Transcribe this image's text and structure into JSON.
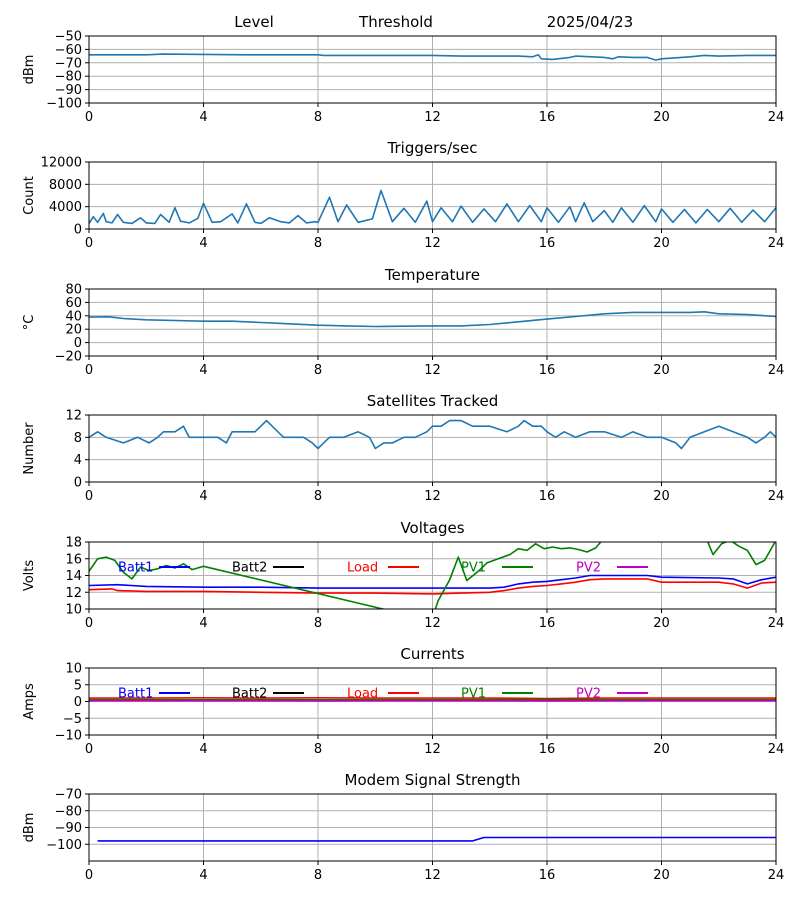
{
  "header": {
    "level": "Level",
    "threshold": "Threshold",
    "date": "2025/04/23"
  },
  "colors": {
    "default": "#1f77b4",
    "blue": "#0000ff",
    "black": "#000000",
    "red": "#ff0000",
    "green": "#008000",
    "magenta": "#bf00bf",
    "grid": "#b0b0b0"
  },
  "chart_data": [
    {
      "type": "line",
      "title": "",
      "ylabel": "dBm",
      "xlim": [
        0,
        24
      ],
      "ylim": [
        -100,
        -50
      ],
      "xticks": [
        0,
        4,
        8,
        12,
        16,
        20,
        24
      ],
      "yticks": [
        -100,
        -90,
        -80,
        -70,
        -60,
        -50
      ],
      "grid": true,
      "series": [
        {
          "color": "#1f77b4",
          "x": [
            0,
            2,
            2.6,
            5.5,
            8,
            8.2,
            10,
            12,
            13,
            14,
            15,
            15.5,
            15.7,
            15.8,
            16.2,
            16.8,
            17,
            18,
            18.3,
            18.5,
            19,
            19.5,
            19.8,
            20,
            21,
            21.5,
            22,
            23,
            24
          ],
          "values": [
            -64,
            -64,
            -63.5,
            -64,
            -64,
            -64.5,
            -64.5,
            -64.5,
            -65,
            -65,
            -65,
            -65.5,
            -64,
            -67,
            -67.5,
            -66,
            -65,
            -66,
            -67,
            -65.5,
            -66,
            -66,
            -68,
            -67,
            -65.5,
            -64.5,
            -65,
            -64.5,
            -64.5
          ]
        }
      ]
    },
    {
      "type": "line",
      "title": "Triggers/sec",
      "ylabel": "Count",
      "xlim": [
        0,
        24
      ],
      "ylim": [
        0,
        12000
      ],
      "xticks": [
        0,
        4,
        8,
        12,
        16,
        20,
        24
      ],
      "yticks": [
        0,
        4000,
        8000,
        12000
      ],
      "grid": true,
      "series": [
        {
          "color": "#1f77b4",
          "x": [
            0,
            0.15,
            0.3,
            0.5,
            0.6,
            0.8,
            1.0,
            1.2,
            1.5,
            1.8,
            2.0,
            2.3,
            2.5,
            2.8,
            3.0,
            3.2,
            3.5,
            3.8,
            4.0,
            4.3,
            4.6,
            5.0,
            5.2,
            5.5,
            5.8,
            6.0,
            6.3,
            6.7,
            7.0,
            7.3,
            7.6,
            7.9,
            8.0,
            8.4,
            8.7,
            9.0,
            9.4,
            9.9,
            10.2,
            10.6,
            11.0,
            11.4,
            11.8,
            12.0,
            12.3,
            12.7,
            13.0,
            13.4,
            13.8,
            14.2,
            14.6,
            15.0,
            15.4,
            15.8,
            16.0,
            16.4,
            16.8,
            17.0,
            17.3,
            17.6,
            18.0,
            18.3,
            18.6,
            19.0,
            19.4,
            19.8,
            20.0,
            20.4,
            20.8,
            21.2,
            21.6,
            22.0,
            22.4,
            22.8,
            23.2,
            23.6,
            24.0
          ],
          "values": [
            1000,
            2200,
            1200,
            2800,
            1300,
            1100,
            2600,
            1200,
            1000,
            2000,
            1100,
            1000,
            2600,
            1200,
            3800,
            1400,
            1100,
            1900,
            4600,
            1200,
            1300,
            2700,
            1100,
            4500,
            1200,
            1000,
            2000,
            1300,
            1100,
            2400,
            1100,
            1300,
            1200,
            5700,
            1300,
            4300,
            1200,
            1800,
            6900,
            1300,
            3700,
            1200,
            5000,
            1300,
            3800,
            1300,
            4100,
            1200,
            3600,
            1300,
            4500,
            1300,
            4200,
            1300,
            3800,
            1200,
            4000,
            1300,
            4700,
            1300,
            3300,
            1200,
            3800,
            1200,
            4200,
            1300,
            3600,
            1200,
            3500,
            1100,
            3500,
            1300,
            3700,
            1200,
            3400,
            1300,
            3800
          ]
        }
      ]
    },
    {
      "type": "line",
      "title": "Temperature",
      "ylabel": "°C",
      "xlim": [
        0,
        24
      ],
      "ylim": [
        -20,
        80
      ],
      "xticks": [
        0,
        4,
        8,
        12,
        16,
        20,
        24
      ],
      "yticks": [
        -20,
        0,
        20,
        40,
        60,
        80
      ],
      "grid": true,
      "series": [
        {
          "color": "#1f77b4",
          "x": [
            0,
            0.7,
            1.2,
            2,
            3,
            4,
            5,
            6,
            7,
            8,
            9,
            10,
            11,
            12,
            13,
            14,
            15,
            16,
            17,
            18,
            19,
            20,
            21,
            21.5,
            22,
            23,
            24
          ],
          "values": [
            38,
            38.5,
            36,
            34,
            33,
            32,
            32,
            30,
            28,
            26,
            25,
            24,
            24.5,
            25,
            25,
            27,
            31,
            35,
            39,
            43,
            45,
            45,
            45,
            46,
            43,
            42,
            39
          ]
        }
      ]
    },
    {
      "type": "line",
      "title": "Satellites Tracked",
      "ylabel": "Number",
      "xlim": [
        0,
        24
      ],
      "ylim": [
        0,
        12
      ],
      "xticks": [
        0,
        4,
        8,
        12,
        16,
        20,
        24
      ],
      "yticks": [
        0,
        4,
        8,
        12
      ],
      "grid": true,
      "series": [
        {
          "color": "#1f77b4",
          "x": [
            0,
            0.3,
            0.6,
            1.2,
            1.7,
            2.1,
            2.4,
            2.6,
            3.0,
            3.3,
            3.5,
            4.0,
            4.5,
            4.8,
            5.0,
            5.8,
            6.0,
            6.2,
            6.4,
            6.6,
            6.8,
            7.0,
            7.5,
            7.8,
            8.0,
            8.2,
            8.4,
            8.9,
            9.4,
            9.8,
            10.0,
            10.3,
            10.6,
            11.0,
            11.4,
            11.8,
            12.0,
            12.3,
            12.6,
            13.0,
            13.4,
            14.0,
            14.6,
            15.0,
            15.2,
            15.5,
            15.8,
            16.0,
            16.3,
            16.6,
            17.0,
            17.5,
            18.0,
            18.6,
            19.0,
            19.5,
            20.0,
            20.5,
            20.7,
            21.0,
            21.5,
            22.0,
            22.5,
            23.0,
            23.3,
            23.6,
            23.8,
            24.0
          ],
          "values": [
            8,
            9,
            8,
            7,
            8,
            7,
            8,
            9,
            9,
            10,
            8,
            8,
            8,
            7,
            9,
            9,
            10,
            11,
            10,
            9,
            8,
            8,
            8,
            7,
            6,
            7,
            8,
            8,
            9,
            8,
            6,
            7,
            7,
            8,
            8,
            9,
            10,
            10,
            11,
            11,
            10,
            10,
            9,
            10,
            11,
            10,
            10,
            9,
            8,
            9,
            8,
            9,
            9,
            8,
            9,
            8,
            8,
            7,
            6,
            8,
            9,
            10,
            9,
            8,
            7,
            8,
            9,
            8
          ]
        }
      ]
    },
    {
      "type": "line",
      "title": "Voltages",
      "ylabel": "Volts",
      "xlim": [
        0,
        24
      ],
      "ylim": [
        10,
        18
      ],
      "xticks": [
        0,
        4,
        8,
        12,
        16,
        20,
        24
      ],
      "yticks": [
        10,
        12,
        14,
        16,
        18
      ],
      "grid": true,
      "legend": "inside-top",
      "series": [
        {
          "name": "Batt1",
          "color": "#0000ff",
          "x": [
            0,
            1,
            2,
            4,
            6,
            8,
            10,
            12,
            13,
            14,
            14.5,
            15,
            15.5,
            16,
            16.5,
            17,
            17.5,
            18,
            19,
            19.5,
            20,
            22,
            22.5,
            23,
            23.5,
            24
          ],
          "values": [
            12.8,
            12.9,
            12.7,
            12.6,
            12.6,
            12.5,
            12.5,
            12.5,
            12.5,
            12.5,
            12.6,
            13.0,
            13.2,
            13.3,
            13.5,
            13.7,
            14.0,
            14.0,
            14.0,
            14.0,
            13.8,
            13.7,
            13.6,
            13.0,
            13.5,
            13.8
          ]
        },
        {
          "name": "Batt2",
          "color": "#000000",
          "x": [],
          "values": []
        },
        {
          "name": "Load",
          "color": "#ff0000",
          "x": [
            0,
            0.8,
            1,
            2,
            4,
            6,
            8,
            10,
            12,
            13,
            14,
            14.5,
            15,
            15.5,
            16,
            16.5,
            17,
            17.5,
            18,
            19,
            19.5,
            20,
            22,
            22.5,
            23,
            23.5,
            24
          ],
          "values": [
            12.3,
            12.4,
            12.2,
            12.1,
            12.1,
            12.0,
            11.9,
            11.9,
            11.8,
            11.9,
            12.0,
            12.2,
            12.5,
            12.7,
            12.8,
            13.0,
            13.2,
            13.5,
            13.6,
            13.6,
            13.6,
            13.2,
            13.2,
            13.0,
            12.5,
            13.1,
            13.2
          ]
        },
        {
          "name": "PV1",
          "color": "#008000",
          "x": [
            0,
            0.3,
            0.6,
            0.9,
            1.2,
            1.5,
            1.8,
            2.1,
            2.4,
            2.7,
            3.0,
            3.3,
            3.6,
            3.9,
            4.0,
            11.5,
            12.0,
            12.2,
            12.6,
            12.9,
            13.2,
            13.6,
            13.9,
            14.3,
            14.7,
            15.0,
            15.3,
            15.6,
            15.9,
            16.2,
            16.5,
            16.8,
            17.1,
            17.4,
            17.7,
            18.0,
            20.0,
            21.5,
            21.8,
            22.1,
            22.4,
            22.7,
            23.0,
            23.3,
            23.6,
            24.0
          ],
          "values": [
            14.5,
            16.0,
            16.2,
            15.8,
            14.4,
            13.6,
            15.0,
            14.6,
            14.8,
            15.2,
            14.9,
            15.4,
            14.7,
            15.0,
            15.1,
            9.0,
            9.0,
            11.0,
            13.5,
            16.2,
            13.4,
            14.5,
            15.5,
            16.0,
            16.5,
            17.2,
            17.0,
            17.8,
            17.2,
            17.4,
            17.2,
            17.3,
            17.1,
            16.8,
            17.3,
            18.5,
            19.5,
            19.0,
            16.5,
            17.8,
            18.2,
            17.5,
            17.0,
            15.3,
            15.8,
            18.2
          ]
        },
        {
          "name": "PV2",
          "color": "#bf00bf",
          "x": [],
          "values": []
        }
      ]
    },
    {
      "type": "line",
      "title": "Currents",
      "ylabel": "Amps",
      "xlim": [
        0,
        24
      ],
      "ylim": [
        -10,
        10
      ],
      "xticks": [
        0,
        4,
        8,
        12,
        16,
        20,
        24
      ],
      "yticks": [
        -10,
        -5,
        0,
        5,
        10
      ],
      "grid": true,
      "legend": "inside-top",
      "series": [
        {
          "name": "Batt1",
          "color": "#0000ff",
          "x": [
            0,
            4,
            8,
            12,
            16,
            20,
            24
          ],
          "values": [
            0.3,
            0.3,
            0.2,
            0.3,
            0.2,
            0.3,
            0.3
          ]
        },
        {
          "name": "Batt2",
          "color": "#000000",
          "x": [],
          "values": []
        },
        {
          "name": "Load",
          "color": "#ff0000",
          "x": [
            0,
            2,
            4,
            6,
            8,
            10,
            12,
            14,
            16,
            18,
            20,
            22,
            24
          ],
          "values": [
            1.0,
            1.0,
            1.1,
            1.0,
            1.1,
            1.0,
            1.0,
            1.0,
            0.9,
            1.0,
            1.0,
            1.0,
            1.0
          ]
        },
        {
          "name": "PV1",
          "color": "#008000",
          "x": [
            0,
            24
          ],
          "values": [
            0.5,
            0.5
          ]
        },
        {
          "name": "PV2",
          "color": "#bf00bf",
          "x": [
            0,
            24
          ],
          "values": [
            0.2,
            0.2
          ]
        }
      ]
    },
    {
      "type": "line",
      "title": "Modem Signal Strength",
      "ylabel": "dBm",
      "xlim": [
        0,
        24
      ],
      "ylim": [
        -110,
        -70
      ],
      "xticks": [
        0,
        4,
        8,
        12,
        16,
        20,
        24
      ],
      "yticks": [
        -100,
        -90,
        -80,
        -70
      ],
      "grid": true,
      "series": [
        {
          "color": "#0000ff",
          "x": [
            0.3,
            13.4,
            13.8,
            24
          ],
          "values": [
            -98,
            -98,
            -96,
            -96
          ]
        }
      ]
    }
  ]
}
